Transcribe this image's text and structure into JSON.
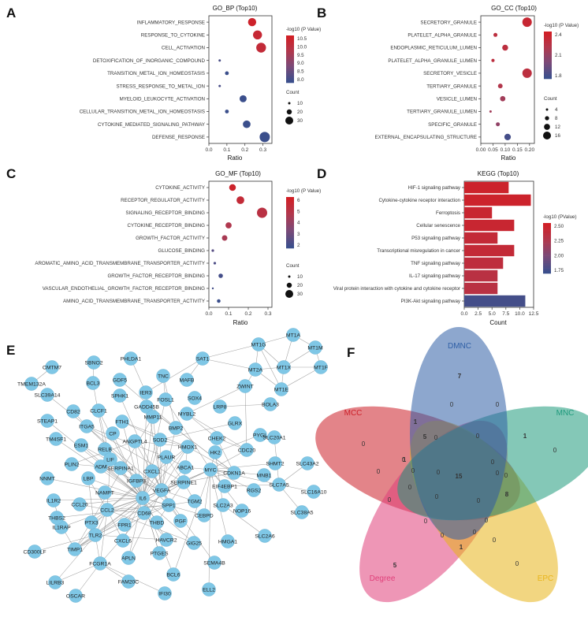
{
  "panels": {
    "A": {
      "letter": "A",
      "title": "GO_BP (Top10)",
      "xlabel": "Ratio"
    },
    "B": {
      "letter": "B",
      "title": "GO_CC (Top10)",
      "xlabel": "Ratio"
    },
    "C": {
      "letter": "C",
      "title": "GO_MF (Top10)",
      "xlabel": "Ratio"
    },
    "D": {
      "letter": "D",
      "title": "KEGG (Top10)",
      "xlabel": "Count"
    },
    "E": {
      "letter": "E"
    },
    "F": {
      "letter": "F"
    }
  },
  "chart_data": [
    {
      "id": "A",
      "type": "scatter",
      "title": "GO_BP (Top10)",
      "xlabel": "Ratio",
      "ylabel": "",
      "xlim": [
        0,
        0.35
      ],
      "xticks": [
        0.0,
        0.1,
        0.2,
        0.3
      ],
      "xtick_labels": [
        "0.0",
        "0.1",
        "0.2",
        "0.3"
      ],
      "categories": [
        "INFLAMMATORY_RESPONSE",
        "RESPONSE_TO_CYTOKINE",
        "CELL_ACTIVATION",
        "DETOXIFICATION_OF_INORGANIC_COMPOUND",
        "TRANSITION_METAL_ION_HOMEOSTASIS",
        "STRESS_RESPONSE_TO_METAL_ION",
        "MYELOID_LEUKOCYTE_ACTIVATION",
        "CELLULAR_TRANSITION_METAL_ION_HOMEOSTASIS",
        "CYTOKINE_MEDIATED_SIGNALING_PATHWAY",
        "DEFENSE_RESPONSE"
      ],
      "ratio": [
        0.24,
        0.27,
        0.29,
        0.06,
        0.1,
        0.06,
        0.19,
        0.1,
        0.21,
        0.31
      ],
      "count": [
        22,
        25,
        28,
        6,
        9,
        6,
        18,
        9,
        20,
        30
      ],
      "neglog10p": [
        10.5,
        10.3,
        10.2,
        8.2,
        8.0,
        8.2,
        8.0,
        8.0,
        8.0,
        8.0
      ],
      "color_legend": {
        "title": "-log10 (P Value)",
        "ticks": [
          "10.5",
          "10.0",
          "9.5",
          "9.0",
          "8.5",
          "8.0"
        ]
      },
      "size_legend": {
        "title": "Count",
        "values": [
          "10",
          "20",
          "30"
        ]
      }
    },
    {
      "id": "B",
      "type": "scatter",
      "title": "GO_CC (Top10)",
      "xlabel": "Ratio",
      "ylabel": "",
      "xlim": [
        0,
        0.22
      ],
      "xticks": [
        0.0,
        0.05,
        0.1,
        0.15,
        0.2
      ],
      "xtick_labels": [
        "0.00",
        "0.05",
        "0.10",
        "0.15",
        "0.20"
      ],
      "categories": [
        "SECRETORY_GRANULE",
        "PLATELET_ALPHA_GRANULE",
        "ENDOPLASMIC_RETICULUM_LUMEN",
        "PLATELET_ALPHA_GRANULE_LUMEN",
        "SECRETORY_VESICLE",
        "TERTIARY_GRANULE",
        "VESICLE_LUMEN",
        "TERTIARY_GRANULE_LUMEN",
        "SPECIFIC_GRANULE",
        "EXTERNAL_ENCAPSULATING_STRUCTURE"
      ],
      "ratio": [
        0.19,
        0.06,
        0.1,
        0.05,
        0.19,
        0.08,
        0.09,
        0.04,
        0.07,
        0.11
      ],
      "count": [
        16,
        6,
        9,
        5,
        16,
        7,
        8,
        4,
        6,
        10
      ],
      "neglog10p": [
        2.5,
        2.4,
        2.4,
        2.4,
        2.4,
        2.3,
        2.2,
        2.2,
        2.1,
        1.7
      ],
      "color_legend": {
        "title": "-log10 (P Value)",
        "ticks": [
          "2.4",
          "2.1",
          "1.8"
        ]
      },
      "size_legend": {
        "title": "Count",
        "values": [
          "4",
          "8",
          "12",
          "16"
        ]
      }
    },
    {
      "id": "C",
      "type": "scatter",
      "title": "GO_MF (Top10)",
      "xlabel": "Ratio",
      "ylabel": "",
      "xlim": [
        0,
        0.32
      ],
      "xticks": [
        0.0,
        0.1,
        0.2,
        0.3
      ],
      "xtick_labels": [
        "0.0",
        "0.1",
        "0.2",
        "0.3"
      ],
      "categories": [
        "CYTOKINE_ACTIVITY",
        "RECEPTOR_REGULATOR_ACTIVITY",
        "SIGNALING_RECEPTOR_BINDING",
        "CYTOKINE_RECEPTOR_BINDING",
        "GROWTH_FACTOR_ACTIVITY",
        "GLUCOSE_BINDING",
        "AROMATIC_AMINO_ACID_TRANSMEMBRANE_TRANSPORTER_ACTIVITY",
        "GROWTH_FACTOR_RECEPTOR_BINDING",
        "VASCULAR_ENDOTHELIAL_GROWTH_FACTOR_RECEPTOR_BINDING",
        "AMINO_ACID_TRANSMEMBRANE_TRANSPORTER_ACTIVITY"
      ],
      "ratio": [
        0.12,
        0.16,
        0.27,
        0.1,
        0.08,
        0.02,
        0.03,
        0.06,
        0.02,
        0.05
      ],
      "count": [
        14,
        18,
        30,
        12,
        10,
        3,
        3,
        7,
        2,
        5
      ],
      "neglog10p": [
        6.0,
        5.6,
        5.2,
        4.8,
        4.6,
        2.6,
        2.4,
        2.2,
        2.2,
        2.0
      ],
      "color_legend": {
        "title": "-log10 (P Value)",
        "ticks": [
          "6",
          "5",
          "4",
          "3",
          "2"
        ]
      },
      "size_legend": {
        "title": "Count",
        "values": [
          "10",
          "20",
          "30"
        ]
      }
    },
    {
      "id": "D",
      "type": "bar",
      "title": "KEGG (Top10)",
      "xlabel": "Count",
      "ylabel": "",
      "xlim": [
        0,
        12.5
      ],
      "xticks": [
        0,
        2.5,
        5,
        7.5,
        10,
        12.5
      ],
      "xtick_labels": [
        "0.0",
        "2.5",
        "5.0",
        "7.5",
        "10.0",
        "12.5"
      ],
      "categories": [
        "HIF-1 signaling pathway",
        "Cytokine-cytokine receptor interaction",
        "Ferroptosis",
        "Cellular senescence",
        "P53 signaling pathway",
        "Transcriptional misregulation in cancer",
        "TNF signaling pathway",
        "IL-17 signaling pathway",
        "Viral protein interaction with cytokine and cytokine receptor",
        "PI3K-Akt signaling pathway"
      ],
      "values": [
        8,
        12,
        5,
        9,
        6,
        9,
        7,
        6,
        6,
        11
      ],
      "neglog10p": [
        2.65,
        2.65,
        2.6,
        2.6,
        2.55,
        2.55,
        2.5,
        2.45,
        2.45,
        1.7
      ],
      "color_legend": {
        "title": "-log10 (PValue)",
        "ticks": [
          "2.50",
          "2.25",
          "2.00",
          "1.75"
        ]
      }
    }
  ],
  "network": {
    "nodes": [
      "MT1A",
      "MT1G",
      "MT1M",
      "MT1X",
      "MT2A",
      "MT1F",
      "MT1E",
      "ZWINT",
      "SAT1",
      "PHLDA1",
      "SBNO2",
      "CMTM7",
      "TMEM132A",
      "BCL3",
      "GDF5",
      "TNC",
      "MAFB",
      "SLC39A14",
      "SPHK1",
      "IER3",
      "SOX4",
      "BOLA3",
      "CLCF1",
      "FOSL1",
      "GADD45B",
      "LRP8",
      "CD82",
      "STEAP1",
      "ITGA5",
      "MYBL2",
      "MMP11",
      "FTH1",
      "ESM1",
      "ANGPTL4",
      "BMP2",
      "GLRX",
      "SOD2",
      "TM4SF1",
      "CP",
      "PYGL",
      "RELB",
      "HMOX1",
      "CHEK2",
      "HK2",
      "SLC20A1",
      "PLIN2",
      "ADM",
      "LIF",
      "SERPINA1",
      "PLAUR",
      "CDC20",
      "ABCA1",
      "SHMT2",
      "SLC43A2",
      "NNMT",
      "CXCL1",
      "LBP",
      "IGFBP3",
      "MYC",
      "CDKN1A",
      "MNB1",
      "NAMPT",
      "SERPINE1",
      "EIF4EBP1",
      "SLC7A5",
      "IL1R2",
      "CCL20",
      "IL6",
      "VEGFA",
      "RGS2",
      "SLC16A10",
      "CCL2",
      "TGM2",
      "SLC2A3",
      "IL1RAP",
      "PTX3",
      "THBS2",
      "CD68",
      "SPP1",
      "NOP16",
      "SLC38A5",
      "FPR1",
      "THBD",
      "PGF",
      "TLR2",
      "CEBPD",
      "TIMP1",
      "CD300LF",
      "CXCL6",
      "HAVCR2",
      "GIG25",
      "HMGA1",
      "SLC2A6",
      "FCGR1A",
      "APLN",
      "PTGES",
      "SEMA4B",
      "LILRB3",
      "BCL6",
      "FAM20C",
      "ELL2",
      "OSCAR",
      "IFI30"
    ]
  },
  "venn": {
    "sets": [
      {
        "name": "DMNC",
        "color": "#2f5fa6"
      },
      {
        "name": "MCC",
        "color": "#cc1f28"
      },
      {
        "name": "MNC",
        "color": "#1f9a7c"
      },
      {
        "name": "Degree",
        "color": "#e0407a"
      },
      {
        "name": "EPC",
        "color": "#e8b41a"
      }
    ],
    "numbers": [
      "7",
      "1",
      "0",
      "0",
      "0",
      "1",
      "0",
      "5",
      "0",
      "0",
      "0",
      "0",
      "1",
      "0",
      "0",
      "0",
      "0",
      "15",
      "0",
      "8",
      "0",
      "0",
      "0",
      "0",
      "0",
      "0",
      "0",
      "0",
      "1",
      "0",
      "5",
      "0"
    ]
  }
}
